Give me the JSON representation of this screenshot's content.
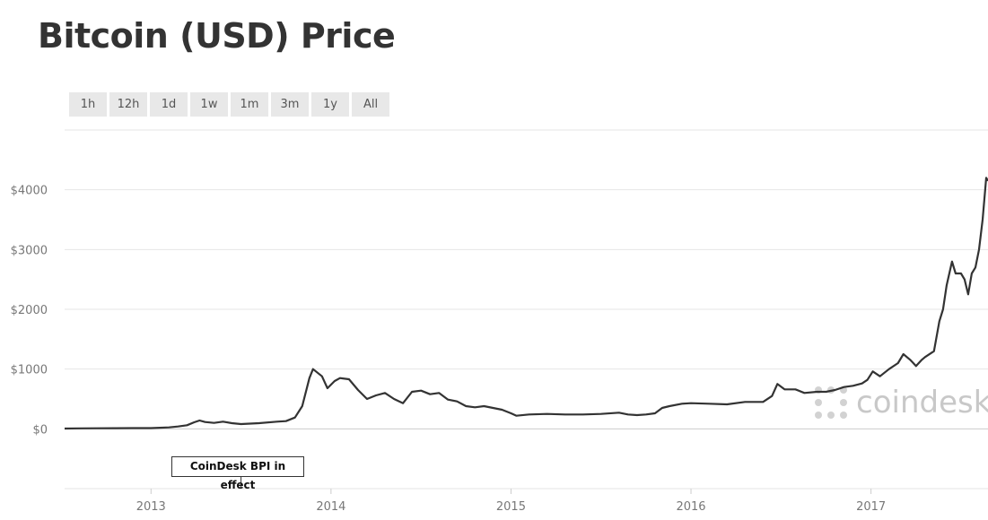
{
  "page": {
    "title": "Bitcoin (USD) Price",
    "watermark": "coindesk",
    "range_buttons": [
      "1h",
      "12h",
      "1d",
      "1w",
      "1m",
      "3m",
      "1y",
      "All"
    ]
  },
  "chart_data": {
    "type": "line",
    "title": "Bitcoin (USD) Price",
    "xlabel": "",
    "ylabel": "",
    "y_ticks": [
      "$0",
      "$1000",
      "$2000",
      "$3000",
      "$4000"
    ],
    "y_tick_values": [
      0,
      1000,
      2000,
      3000,
      4000
    ],
    "x_ticks": [
      "2013",
      "2014",
      "2015",
      "2016",
      "2017"
    ],
    "x_tick_values": [
      2013,
      2014,
      2015,
      2016,
      2017
    ],
    "xlim": [
      2012.52,
      2017.65
    ],
    "ylim": [
      -1000,
      5000
    ],
    "grid": true,
    "legend": "none",
    "line_color": "#333333",
    "annotation": {
      "label": "CoinDesk BPI in effect",
      "x": 2013.5
    },
    "series": [
      {
        "x": [
          2012.52,
          2012.6,
          2012.7,
          2012.8,
          2012.9,
          2013.0,
          2013.1,
          2013.15,
          2013.2,
          2013.24,
          2013.27,
          2013.3,
          2013.35,
          2013.4,
          2013.45,
          2013.5,
          2013.6,
          2013.7,
          2013.75,
          2013.8,
          2013.84,
          2013.88,
          2013.9,
          2013.95,
          2013.98,
          2014.02,
          2014.05,
          2014.1,
          2014.15,
          2014.2,
          2014.25,
          2014.3,
          2014.35,
          2014.4,
          2014.45,
          2014.5,
          2014.55,
          2014.6,
          2014.65,
          2014.7,
          2014.75,
          2014.8,
          2014.85,
          2014.9,
          2014.95,
          2015.0,
          2015.03,
          2015.1,
          2015.2,
          2015.3,
          2015.4,
          2015.5,
          2015.6,
          2015.65,
          2015.7,
          2015.75,
          2015.8,
          2015.84,
          2015.88,
          2015.95,
          2016.0,
          2016.1,
          2016.2,
          2016.3,
          2016.4,
          2016.45,
          2016.48,
          2016.52,
          2016.58,
          2016.63,
          2016.7,
          2016.75,
          2016.8,
          2016.85,
          2016.9,
          2016.95,
          2016.98,
          2017.01,
          2017.05,
          2017.1,
          2017.15,
          2017.18,
          2017.22,
          2017.25,
          2017.28,
          2017.3,
          2017.35,
          2017.38,
          2017.4,
          2017.42,
          2017.45,
          2017.47,
          2017.5,
          2017.52,
          2017.54,
          2017.56,
          2017.58,
          2017.6,
          2017.62,
          2017.64,
          2017.65
        ],
        "y": [
          5,
          8,
          10,
          11,
          12,
          13,
          25,
          40,
          60,
          110,
          140,
          115,
          100,
          120,
          95,
          80,
          95,
          120,
          130,
          190,
          380,
          850,
          1000,
          880,
          680,
          800,
          850,
          830,
          650,
          500,
          560,
          600,
          500,
          430,
          620,
          640,
          580,
          600,
          490,
          460,
          380,
          360,
          380,
          350,
          320,
          260,
          220,
          240,
          250,
          240,
          240,
          250,
          270,
          240,
          230,
          240,
          260,
          350,
          380,
          420,
          430,
          420,
          410,
          450,
          450,
          550,
          750,
          660,
          660,
          600,
          620,
          620,
          650,
          700,
          720,
          760,
          820,
          960,
          880,
          1000,
          1100,
          1250,
          1150,
          1050,
          1150,
          1200,
          1300,
          1800,
          2000,
          2400,
          2800,
          2600,
          2600,
          2500,
          2250,
          2600,
          2700,
          3000,
          3500,
          4200,
          4150
        ]
      }
    ]
  }
}
